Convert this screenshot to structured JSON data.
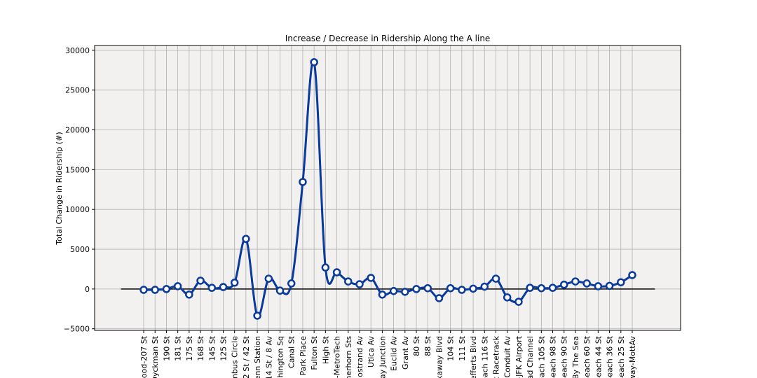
{
  "chart_data": {
    "type": "line",
    "title": "Increase / Decrease in Ridership Along the A line",
    "y_label": "Total Change in Ridership (#)",
    "categories": [
      "ood-207 St",
      "Dyckman St",
      "190 St",
      "181 St",
      "175 St",
      "168 St",
      "145 St",
      "125 St",
      "mbus Circle",
      "42 St / 42 St",
      "enn Station",
      "14 St / 8 Av",
      "shington Sq",
      "Canal St",
      "/ Park Place",
      "Fulton St",
      "High St",
      "-MetroTech",
      "nerhorn Sts",
      "Nostrand Av",
      "Utica Av",
      "ay Junction",
      "Euclid Av",
      "Grant Av",
      "80 St",
      "88 St",
      "kaway Blvd",
      "104 St",
      "111 St",
      "efferts Blvd",
      "each 116 St",
      "t Racetrack",
      "Conduit Av",
      "-JFK Airport",
      "ad Channel",
      "each 105 St",
      "Beach 98 St",
      "Beach 90 St",
      "By The Sea",
      "Beach 60 St",
      "Beach 44 St",
      "Beach 36 St",
      "Beach 25 St",
      "way-MottAv"
    ],
    "series": [
      {
        "color": "#0a3a9c",
        "values": [
          -100,
          -100,
          0,
          350,
          -700,
          1050,
          150,
          250,
          800,
          6300,
          -3350,
          1300,
          -200,
          700,
          13450,
          28500,
          2700,
          2100,
          950,
          600,
          1400,
          -700,
          -250,
          -350,
          0,
          100,
          -1150,
          100,
          -100,
          50,
          300,
          1300,
          -1050,
          -1600,
          150,
          100,
          150,
          550,
          950,
          700,
          350,
          400,
          850,
          1750
        ]
      }
    ],
    "ylim": [
      -5200,
      30600
    ],
    "yticks": [
      {
        "value": -5000,
        "label": "−5000"
      },
      0,
      5000,
      10000,
      15000,
      20000,
      25000,
      30000
    ],
    "grid": true,
    "smooth": true
  }
}
